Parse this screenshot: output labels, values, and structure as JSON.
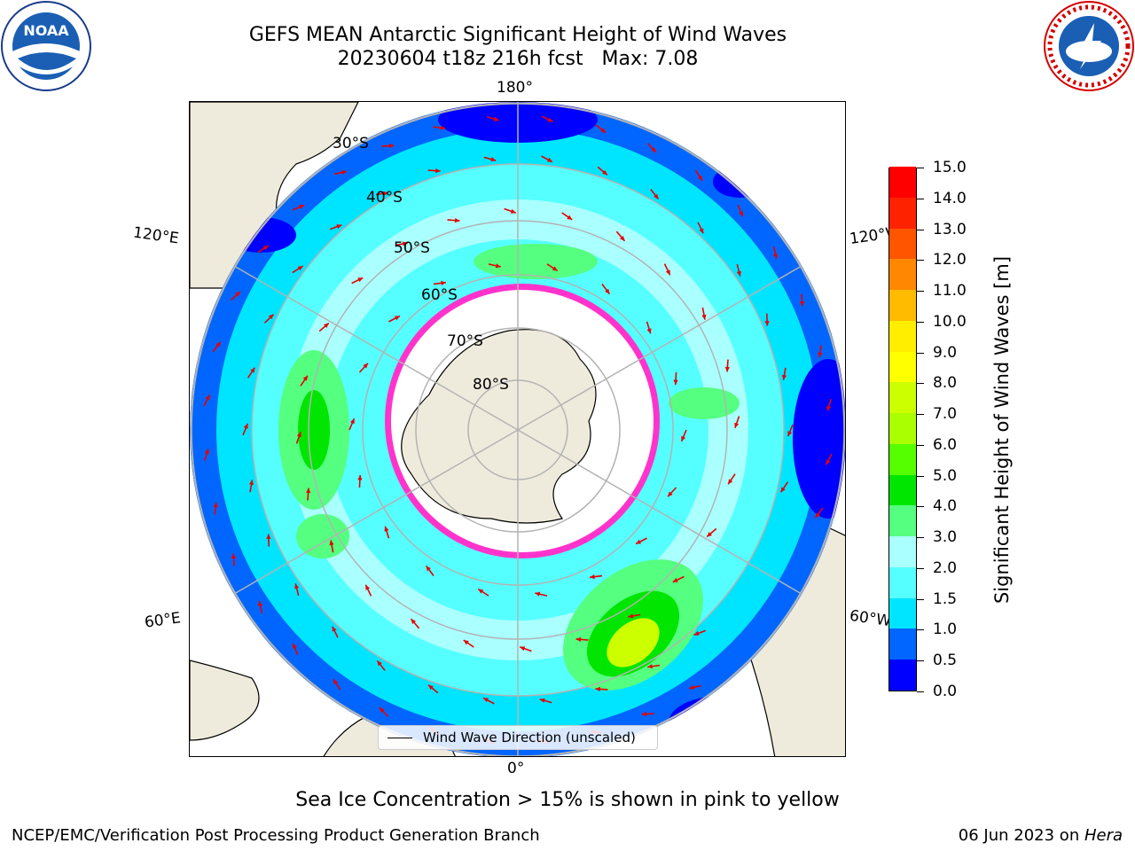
{
  "title": {
    "line1": "GEFS MEAN Antarctic Significant Height of Wind Waves",
    "line2": "20230604 t18z 216h fcst   Max: 7.08"
  },
  "logos": {
    "left": "NOAA",
    "right": "NATIONAL WEATHER SERVICE"
  },
  "map": {
    "projection": "south polar stereographic",
    "longitude_labels": {
      "top": "180°",
      "bottom": "0°",
      "upper_left": "120°E",
      "upper_right": "120°W",
      "lower_left": "60°E",
      "lower_right": "60°W"
    },
    "latitude_labels": [
      "30°S",
      "40°S",
      "50°S",
      "60°S",
      "70°S",
      "80°S"
    ],
    "legend": "Wind Wave Direction (unscaled)",
    "arrow_color": "#e60000",
    "land_color": "#efebdc",
    "sea_ice_color": "#ff33cc"
  },
  "colorbar": {
    "label": "Significant Height of Wind Waves [m]",
    "ticks": [
      "0.0",
      "0.5",
      "1.0",
      "1.5",
      "2.0",
      "3.0",
      "4.0",
      "5.0",
      "6.0",
      "7.0",
      "8.0",
      "9.0",
      "10.0",
      "11.0",
      "12.0",
      "13.0",
      "14.0",
      "15.0"
    ],
    "colors": [
      "#0000ff",
      "#0066ff",
      "#00e5ff",
      "#55ffff",
      "#aaffff",
      "#55ff7f",
      "#00e600",
      "#55ff00",
      "#aaff00",
      "#ccff00",
      "#ffff00",
      "#ffee00",
      "#ffbb00",
      "#ff8800",
      "#ff5500",
      "#ff2200",
      "#ff0000"
    ]
  },
  "sea_ice_note": "Sea Ice Concentration > 15% is shown in pink to yellow",
  "footer": {
    "left": "NCEP/EMC/Verification Post Processing Product Generation Branch",
    "right_prefix": "06 Jun 2023 on ",
    "right_machine": "Hera"
  }
}
